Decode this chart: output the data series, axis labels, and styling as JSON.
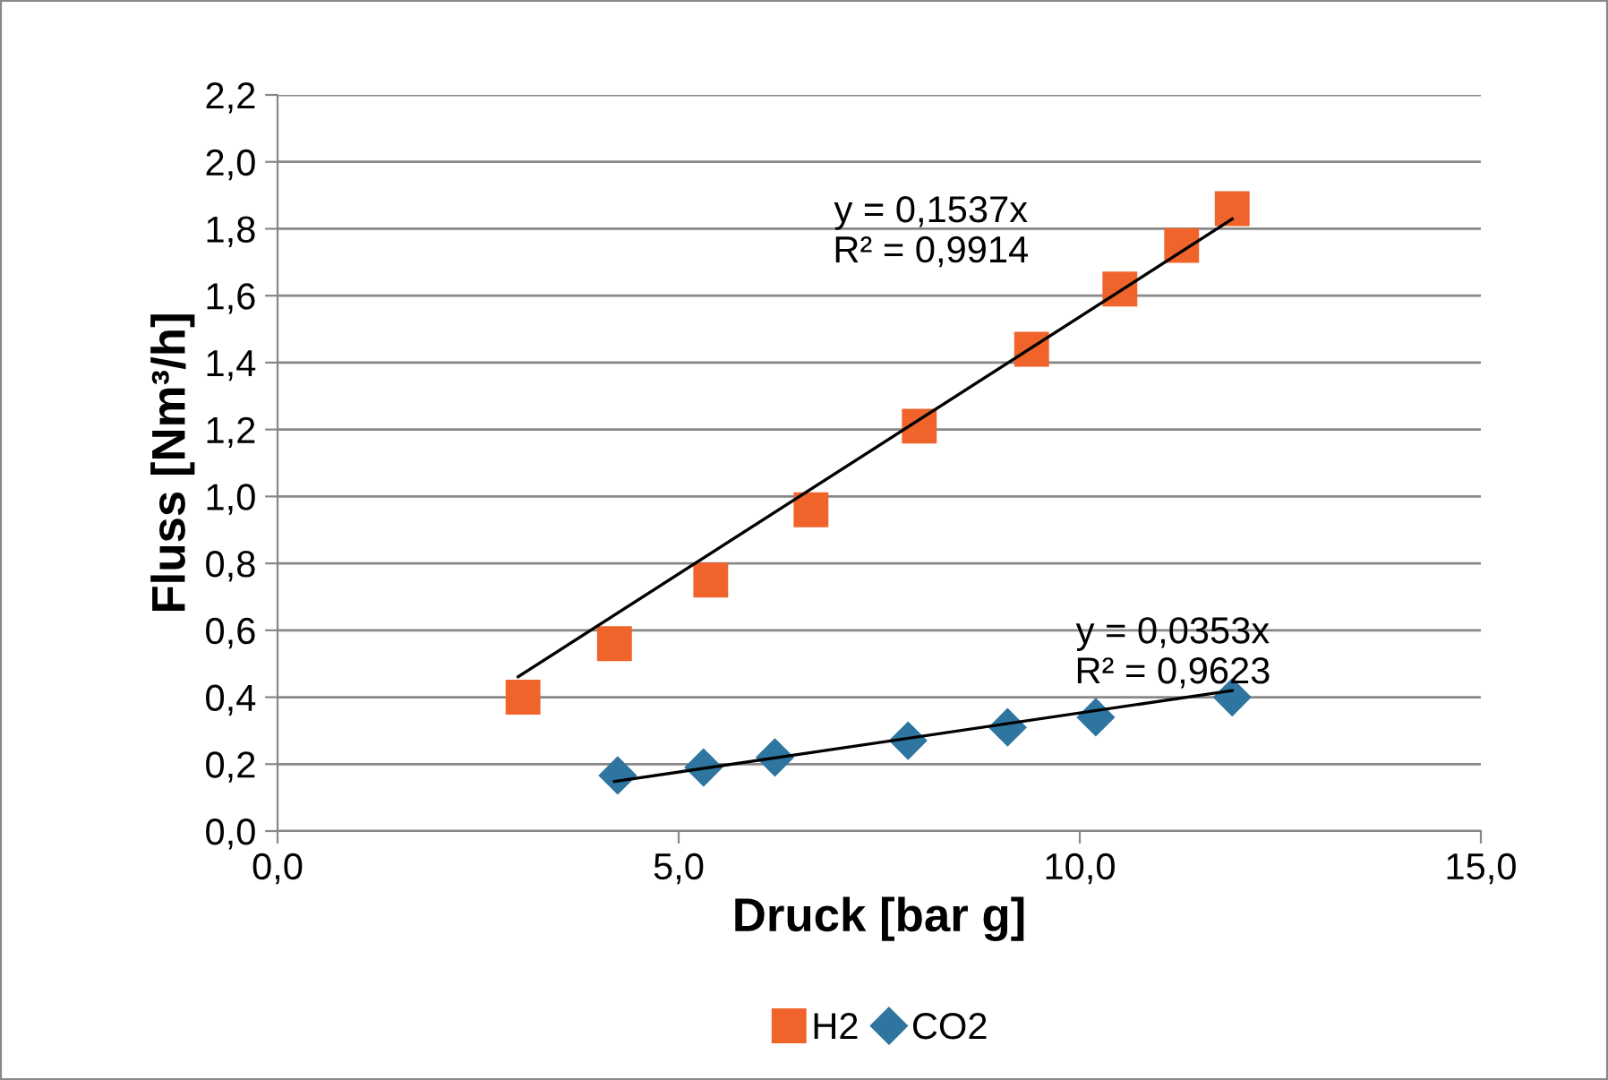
{
  "chart_data": {
    "type": "scatter",
    "xlabel": "Druck [bar g]",
    "ylabel": "Fluss [Nm³/h]",
    "xlim": [
      0,
      15
    ],
    "ylim": [
      0,
      2.2
    ],
    "xticks": [
      {
        "value": 0,
        "label": "0,0"
      },
      {
        "value": 5,
        "label": "5,0"
      },
      {
        "value": 10,
        "label": "10,0"
      },
      {
        "value": 15,
        "label": "15,0"
      }
    ],
    "yticks": [
      {
        "value": 0,
        "label": "0,0"
      },
      {
        "value": 0.2,
        "label": "0,2"
      },
      {
        "value": 0.4,
        "label": "0,4"
      },
      {
        "value": 0.6,
        "label": "0,6"
      },
      {
        "value": 0.8,
        "label": "0,8"
      },
      {
        "value": 1.0,
        "label": "1,0"
      },
      {
        "value": 1.2,
        "label": "1,2"
      },
      {
        "value": 1.4,
        "label": "1,4"
      },
      {
        "value": 1.6,
        "label": "1,6"
      },
      {
        "value": 1.8,
        "label": "1,8"
      },
      {
        "value": 2.0,
        "label": "2,0"
      },
      {
        "value": 2.2,
        "label": "2,2"
      }
    ],
    "grid": "y",
    "legend": "bottom",
    "series": [
      {
        "name": "H2",
        "color": "#f0642c",
        "marker": "square",
        "x": [
          3.06,
          4.2,
          5.4,
          6.65,
          8.0,
          9.4,
          10.5,
          11.27,
          11.9
        ],
        "values": [
          0.4,
          0.56,
          0.75,
          0.96,
          1.21,
          1.44,
          1.62,
          1.75,
          1.86
        ]
      },
      {
        "name": "CO2",
        "color": "#2e75a0",
        "marker": "diamond",
        "x": [
          4.24,
          5.31,
          6.2,
          7.86,
          9.1,
          10.2,
          11.9
        ],
        "values": [
          0.166,
          0.19,
          0.22,
          0.27,
          0.31,
          0.34,
          0.4
        ]
      },
      {
        "type": "line",
        "color": "#000000",
        "marker": "none",
        "x": [
          3.0,
          11.9
        ],
        "values": [
          0.461,
          1.829
        ]
      },
      {
        "type": "line",
        "color": "#000000",
        "marker": "none",
        "x": [
          4.2,
          11.9
        ],
        "values": [
          0.148,
          0.42
        ]
      }
    ],
    "annotations": [
      "y = 0,1537x\nR² = 0,9914",
      "y = 0,0353x\nR² = 0,9623"
    ]
  }
}
